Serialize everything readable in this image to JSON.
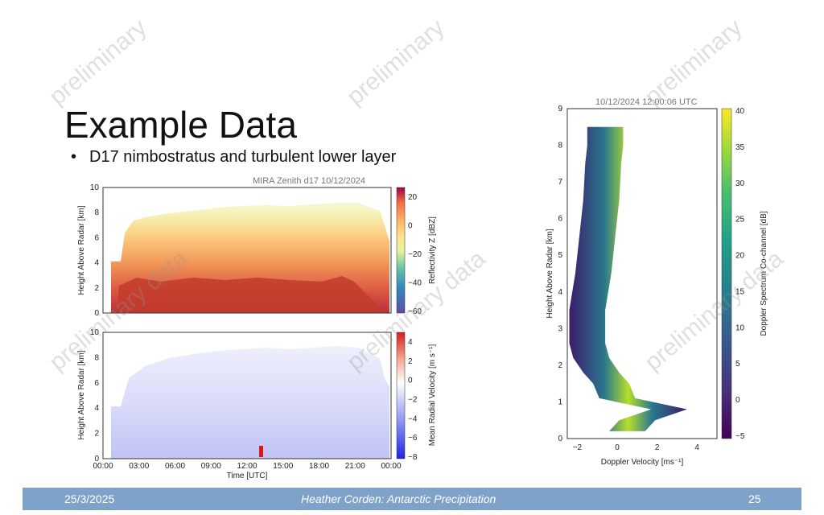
{
  "slide": {
    "title": "Example Data",
    "bullet": "D17 nimbostratus and turbulent lower layer"
  },
  "watermark": {
    "primary": "preliminary",
    "secondary": "preliminary data"
  },
  "footer": {
    "date": "25/3/2025",
    "center": "Heather Corden: Antarctic Precipitation",
    "page": "25"
  },
  "colors": {
    "footer_bar": "#7fa2c9",
    "spectral_low": "#5e4fa2",
    "spectral_high": "#9e0142",
    "viridis_low": "#440154",
    "viridis_high": "#fde725"
  },
  "chart_data": [
    {
      "type": "heatmap",
      "title": "MIRA Zenith d17 10/12/2024",
      "xlabel": "",
      "ylabel": "Height Above Radar [km]",
      "ylim": [
        0,
        10
      ],
      "yticks": [
        "0",
        "2",
        "4",
        "6",
        "8",
        "10"
      ],
      "colorbar": {
        "label": "Reflectivity Z [dBZ]",
        "range": [
          -60,
          30
        ],
        "ticks": [
          "20",
          "0",
          "−20",
          "−40",
          "−60"
        ]
      }
    },
    {
      "type": "heatmap",
      "title": "",
      "xlabel": "Time [UTC]",
      "ylabel": "Height Above Radar [km]",
      "ylim": [
        0,
        10
      ],
      "yticks": [
        "0",
        "2",
        "4",
        "6",
        "8",
        "10"
      ],
      "xticks": [
        "00:00",
        "03:00",
        "06:00",
        "09:00",
        "12:00",
        "15:00",
        "18:00",
        "21:00",
        "00:00"
      ],
      "colorbar": {
        "label": "Mean Radial Velocity [m s⁻¹]",
        "range": [
          -8,
          5
        ],
        "ticks": [
          "4",
          "2",
          "0",
          "−2",
          "−4",
          "−6",
          "−8"
        ]
      }
    },
    {
      "type": "heatmap",
      "title": "10/12/2024 12:00:06 UTC",
      "xlabel": "Doppler Velocity [ms⁻¹]",
      "ylabel": "Height Above Radar [km]",
      "xlim": [
        -2.5,
        5
      ],
      "ylim": [
        0,
        9
      ],
      "xticks": [
        "−2",
        "0",
        "2",
        "4"
      ],
      "yticks": [
        "0",
        "1",
        "2",
        "3",
        "4",
        "5",
        "6",
        "7",
        "8",
        "9"
      ],
      "colorbar": {
        "label": "Doppler Spectrum Co-channel [dB]",
        "range": [
          -5,
          40
        ],
        "ticks": [
          "40",
          "35",
          "30",
          "25",
          "20",
          "15",
          "10",
          "5",
          "0",
          "−5"
        ]
      },
      "spectrum_center": [
        {
          "height": 0.2,
          "velocity": 0.5
        },
        {
          "height": 0.5,
          "velocity": 1.0
        },
        {
          "height": 0.8,
          "velocity": 2.6
        },
        {
          "height": 1.1,
          "velocity": 0.0
        },
        {
          "height": 1.5,
          "velocity": -0.3
        },
        {
          "height": 1.8,
          "velocity": -0.8
        },
        {
          "height": 2.2,
          "velocity": -1.3
        },
        {
          "height": 2.6,
          "velocity": -1.5
        },
        {
          "height": 3.5,
          "velocity": -1.5
        },
        {
          "height": 4.5,
          "velocity": -1.2
        },
        {
          "height": 5.5,
          "velocity": -1.0
        },
        {
          "height": 6.5,
          "velocity": -0.8
        },
        {
          "height": 7.5,
          "velocity": -0.7
        },
        {
          "height": 8.0,
          "velocity": -0.6
        },
        {
          "height": 8.5,
          "velocity": -0.6
        }
      ]
    }
  ]
}
